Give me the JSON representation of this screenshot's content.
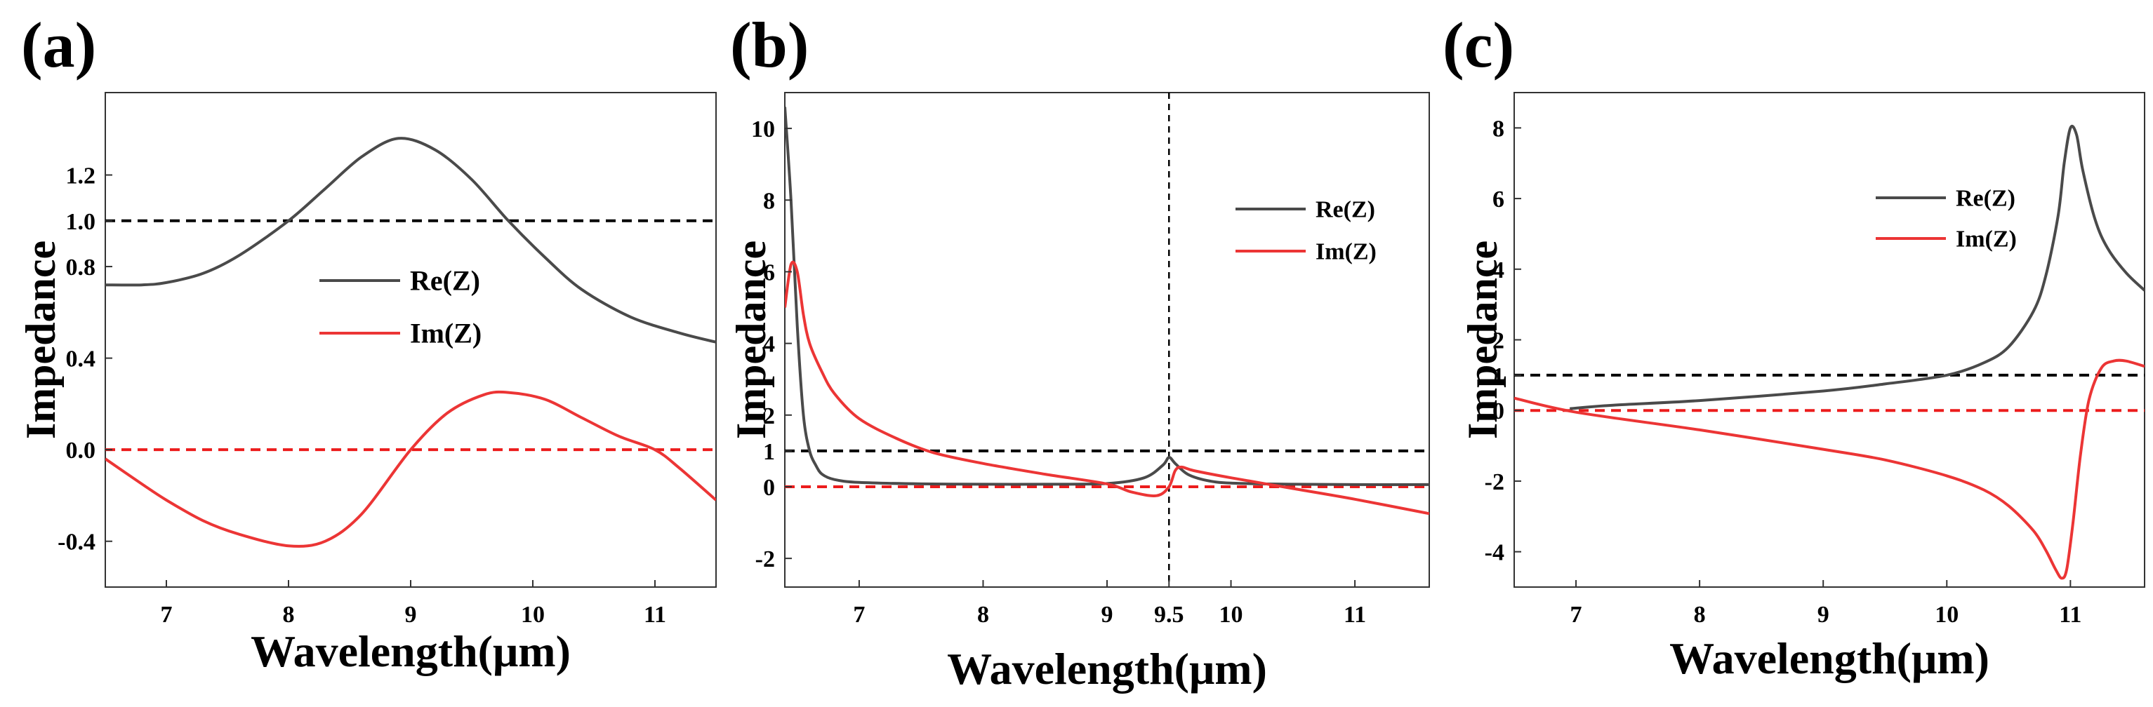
{
  "colors": {
    "re": "#4a4a4a",
    "im": "#ec3535",
    "ref_black": "#000000",
    "ref_red": "#ec1c1c",
    "axes": "#333333"
  },
  "chart_data": [
    {
      "type": "line",
      "panel_label": "(a)",
      "xlabel": "Wavelength(μm)",
      "ylabel": "Impedance",
      "xlim": [
        6.5,
        11.5
      ],
      "ylim": [
        -0.6,
        1.56
      ],
      "xticks": [
        7,
        8,
        9,
        10,
        11
      ],
      "xtick_labels": [
        "7",
        "8",
        "9",
        "10",
        "11"
      ],
      "yticks": [
        -0.4,
        0.0,
        0.4,
        0.8,
        1.0,
        1.2
      ],
      "ytick_labels": [
        "-0.4",
        "0.0",
        "0.4",
        "0.8",
        "1.0",
        "1.2"
      ],
      "legend": {
        "position": "center",
        "entries": [
          "Re(Z)",
          "Im(Z)"
        ]
      },
      "reference_lines": [
        {
          "orientation": "horizontal",
          "value": 1.0,
          "style": "dashed",
          "color": "black"
        },
        {
          "orientation": "horizontal",
          "value": 0.0,
          "style": "dashed",
          "color": "red"
        }
      ],
      "series": [
        {
          "name": "Re(Z)",
          "color": "re",
          "x": [
            6.5,
            6.8,
            7.0,
            7.3,
            7.6,
            8.0,
            8.3,
            8.6,
            8.9,
            9.2,
            9.5,
            9.8,
            10.1,
            10.4,
            10.8,
            11.2,
            11.5
          ],
          "y": [
            0.72,
            0.72,
            0.73,
            0.77,
            0.85,
            1.0,
            1.14,
            1.28,
            1.36,
            1.31,
            1.18,
            1.0,
            0.84,
            0.7,
            0.58,
            0.51,
            0.47
          ]
        },
        {
          "name": "Im(Z)",
          "color": "im",
          "x": [
            6.5,
            6.8,
            7.0,
            7.3,
            7.6,
            8.0,
            8.3,
            8.6,
            9.0,
            9.3,
            9.6,
            9.8,
            10.1,
            10.4,
            10.7,
            11.0,
            11.2,
            11.5
          ],
          "y": [
            -0.04,
            -0.15,
            -0.22,
            -0.31,
            -0.37,
            -0.42,
            -0.4,
            -0.28,
            0.0,
            0.16,
            0.24,
            0.25,
            0.22,
            0.14,
            0.06,
            0.0,
            -0.08,
            -0.22
          ]
        }
      ]
    },
    {
      "type": "line",
      "panel_label": "(b)",
      "xlabel": "Wavelength(μm)",
      "ylabel": "Impedance",
      "xlim": [
        6.4,
        11.6
      ],
      "ylim": [
        -2.8,
        11.0
      ],
      "xticks": [
        7,
        8,
        9,
        9.5,
        10,
        11
      ],
      "xtick_labels": [
        "7",
        "8",
        "9",
        "9.5",
        "10",
        "11"
      ],
      "yticks": [
        -2,
        0,
        1,
        2,
        4,
        6,
        8,
        10
      ],
      "ytick_labels": [
        "-2",
        "0",
        "1",
        "2",
        "4",
        "6",
        "8",
        "10"
      ],
      "legend": {
        "position": "top-right",
        "entries": [
          "Re(Z)",
          "Im(Z)"
        ]
      },
      "reference_lines": [
        {
          "orientation": "horizontal",
          "value": 1.0,
          "style": "dashed",
          "color": "black"
        },
        {
          "orientation": "horizontal",
          "value": 0.0,
          "style": "dashed",
          "color": "red"
        },
        {
          "orientation": "vertical",
          "value": 9.5,
          "style": "dashed",
          "color": "black"
        }
      ],
      "series": [
        {
          "name": "Re(Z)",
          "color": "re",
          "x": [
            6.4,
            6.45,
            6.5,
            6.55,
            6.6,
            6.65,
            6.7,
            6.8,
            7.0,
            7.5,
            8.0,
            8.5,
            9.0,
            9.3,
            9.45,
            9.5,
            9.55,
            9.65,
            9.8,
            10.0,
            10.5,
            11.0,
            11.6
          ],
          "y": [
            10.6,
            8.0,
            4.5,
            2.0,
            1.0,
            0.6,
            0.35,
            0.2,
            0.12,
            0.08,
            0.07,
            0.07,
            0.09,
            0.25,
            0.6,
            0.82,
            0.65,
            0.35,
            0.18,
            0.1,
            0.07,
            0.06,
            0.06
          ]
        },
        {
          "name": "Im(Z)",
          "color": "im",
          "x": [
            6.4,
            6.45,
            6.5,
            6.55,
            6.6,
            6.7,
            6.8,
            7.0,
            7.3,
            7.6,
            8.0,
            8.5,
            9.0,
            9.2,
            9.4,
            9.5,
            9.55,
            9.6,
            9.7,
            10.0,
            10.5,
            11.0,
            11.6
          ],
          "y": [
            5.0,
            6.2,
            6.0,
            4.8,
            4.0,
            3.2,
            2.6,
            1.9,
            1.35,
            0.95,
            0.65,
            0.35,
            0.08,
            -0.15,
            -0.25,
            0.0,
            0.45,
            0.55,
            0.45,
            0.25,
            -0.05,
            -0.35,
            -0.75
          ]
        }
      ]
    },
    {
      "type": "line",
      "panel_label": "(c)",
      "xlabel": "Wavelength(μm)",
      "ylabel": "Impedance",
      "xlim": [
        6.5,
        11.6
      ],
      "ylim": [
        -5.0,
        9.0
      ],
      "xticks": [
        7,
        8,
        9,
        10,
        11
      ],
      "xtick_labels": [
        "7",
        "8",
        "9",
        "10",
        "11"
      ],
      "yticks": [
        -4,
        -2,
        0,
        1,
        2,
        4,
        6,
        8
      ],
      "ytick_labels": [
        "-4",
        "-2",
        "0",
        "1",
        "2",
        "4",
        "6",
        "8"
      ],
      "legend": {
        "position": "top-right",
        "entries": [
          "Re(Z)",
          "Im(Z)"
        ]
      },
      "reference_lines": [
        {
          "orientation": "horizontal",
          "value": 1.0,
          "style": "dashed",
          "color": "black"
        },
        {
          "orientation": "horizontal",
          "value": 0.0,
          "style": "dashed",
          "color": "red"
        }
      ],
      "series": [
        {
          "name": "Re(Z)",
          "color": "re",
          "x": [
            6.95,
            7.3,
            8.0,
            9.0,
            9.5,
            10.0,
            10.3,
            10.5,
            10.7,
            10.8,
            10.9,
            10.95,
            11.0,
            11.05,
            11.1,
            11.2,
            11.3,
            11.45,
            11.6
          ],
          "y": [
            0.05,
            0.15,
            0.28,
            0.55,
            0.75,
            1.0,
            1.35,
            1.8,
            2.8,
            3.8,
            5.5,
            7.0,
            8.0,
            7.8,
            6.8,
            5.4,
            4.6,
            3.9,
            3.4
          ]
        },
        {
          "name": "Im(Z)",
          "color": "im",
          "x": [
            6.5,
            7.0,
            8.0,
            9.0,
            9.5,
            10.0,
            10.3,
            10.5,
            10.7,
            10.8,
            10.88,
            10.93,
            10.97,
            11.02,
            11.08,
            11.15,
            11.25,
            11.35,
            11.45,
            11.6
          ],
          "y": [
            0.35,
            -0.05,
            -0.55,
            -1.1,
            -1.4,
            -1.85,
            -2.25,
            -2.7,
            -3.4,
            -3.95,
            -4.5,
            -4.75,
            -4.5,
            -3.2,
            -1.3,
            0.3,
            1.2,
            1.4,
            1.4,
            1.25
          ]
        }
      ]
    }
  ]
}
